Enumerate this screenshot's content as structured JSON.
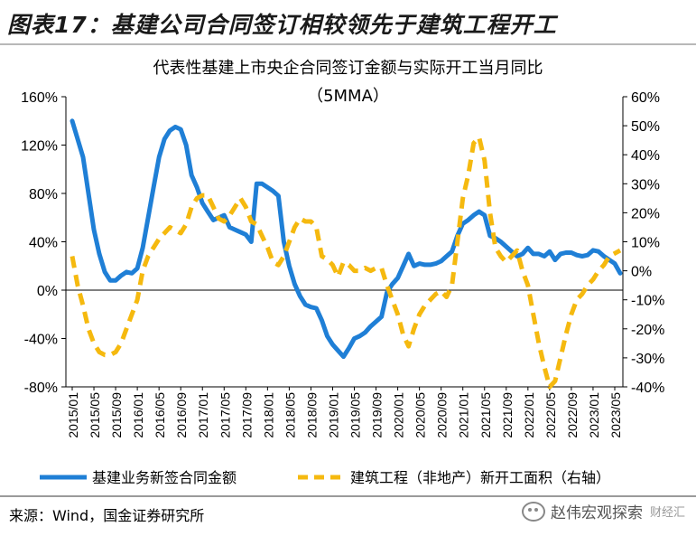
{
  "figure_title": "图表17：基建公司合同签订相较领先于建筑工程开工",
  "source": "来源：Wind，国金证券研究所",
  "watermark": {
    "name": "赵伟宏观探索",
    "sub": "财经汇"
  },
  "colors": {
    "blue": "#1f7fd6",
    "gold": "#f5b90f"
  },
  "chart_data": {
    "type": "line",
    "title": "代表性基建上市央企合同签订金额与实际开工当月同比",
    "subtitle": "（5MMA）",
    "left_axis": {
      "min": -80,
      "max": 160,
      "ticks": [
        "160%",
        "120%",
        "80%",
        "40%",
        "0%",
        "-40%",
        "-80%"
      ]
    },
    "right_axis": {
      "min": -40,
      "max": 60,
      "ticks": [
        "60%",
        "50%",
        "40%",
        "30%",
        "20%",
        "10%",
        "0%",
        "-10%",
        "-20%",
        "-30%",
        "-40%"
      ]
    },
    "x_tick_labels": [
      "2015/01",
      "2015/05",
      "2015/09",
      "2016/01",
      "2016/05",
      "2016/09",
      "2017/01",
      "2017/05",
      "2017/09",
      "2018/01",
      "2018/05",
      "2018/09",
      "2019/01",
      "2019/05",
      "2019/09",
      "2020/01",
      "2020/05",
      "2020/09",
      "2021/01",
      "2021/05",
      "2021/09",
      "2022/01",
      "2022/05",
      "2022/09",
      "2023/01",
      "2023/05"
    ],
    "series": [
      {
        "name": "基建业务新签合同金额",
        "axis": "left",
        "style": "solid",
        "color": "#1f7fd6",
        "points": [
          [
            "2015/01",
            140
          ],
          [
            "2015/02",
            125
          ],
          [
            "2015/03",
            110
          ],
          [
            "2015/04",
            80
          ],
          [
            "2015/05",
            50
          ],
          [
            "2015/06",
            30
          ],
          [
            "2015/07",
            15
          ],
          [
            "2015/08",
            8
          ],
          [
            "2015/09",
            8
          ],
          [
            "2015/10",
            12
          ],
          [
            "2015/11",
            15
          ],
          [
            "2015/12",
            14
          ],
          [
            "2016/01",
            18
          ],
          [
            "2016/02",
            35
          ],
          [
            "2016/03",
            60
          ],
          [
            "2016/04",
            85
          ],
          [
            "2016/05",
            110
          ],
          [
            "2016/06",
            125
          ],
          [
            "2016/07",
            132
          ],
          [
            "2016/08",
            135
          ],
          [
            "2016/09",
            133
          ],
          [
            "2016/10",
            120
          ],
          [
            "2016/11",
            95
          ],
          [
            "2016/12",
            85
          ],
          [
            "2017/01",
            72
          ],
          [
            "2017/02",
            65
          ],
          [
            "2017/03",
            58
          ],
          [
            "2017/04",
            60
          ],
          [
            "2017/05",
            62
          ],
          [
            "2017/06",
            52
          ],
          [
            "2017/07",
            50
          ],
          [
            "2017/08",
            48
          ],
          [
            "2017/09",
            46
          ],
          [
            "2017/10",
            40
          ],
          [
            "2017/11",
            88
          ],
          [
            "2017/12",
            88
          ],
          [
            "2018/01",
            85
          ],
          [
            "2018/02",
            82
          ],
          [
            "2018/03",
            78
          ],
          [
            "2018/04",
            40
          ],
          [
            "2018/05",
            20
          ],
          [
            "2018/06",
            5
          ],
          [
            "2018/07",
            -5
          ],
          [
            "2018/08",
            -12
          ],
          [
            "2018/09",
            -14
          ],
          [
            "2018/10",
            -15
          ],
          [
            "2018/11",
            -25
          ],
          [
            "2018/12",
            -38
          ],
          [
            "2019/01",
            -45
          ],
          [
            "2019/02",
            -50
          ],
          [
            "2019/03",
            -55
          ],
          [
            "2019/04",
            -48
          ],
          [
            "2019/05",
            -40
          ],
          [
            "2019/06",
            -38
          ],
          [
            "2019/07",
            -35
          ],
          [
            "2019/08",
            -30
          ],
          [
            "2019/09",
            -26
          ],
          [
            "2019/10",
            -22
          ],
          [
            "2019/11",
            -2
          ],
          [
            "2019/12",
            5
          ],
          [
            "2020/01",
            10
          ],
          [
            "2020/02",
            20
          ],
          [
            "2020/03",
            30
          ],
          [
            "2020/04",
            20
          ],
          [
            "2020/05",
            22
          ],
          [
            "2020/06",
            21
          ],
          [
            "2020/07",
            21
          ],
          [
            "2020/08",
            22
          ],
          [
            "2020/09",
            24
          ],
          [
            "2020/10",
            28
          ],
          [
            "2020/11",
            32
          ],
          [
            "2020/12",
            45
          ],
          [
            "2021/01",
            55
          ],
          [
            "2021/02",
            58
          ],
          [
            "2021/03",
            62
          ],
          [
            "2021/04",
            65
          ],
          [
            "2021/05",
            62
          ],
          [
            "2021/06",
            45
          ],
          [
            "2021/07",
            43
          ],
          [
            "2021/08",
            40
          ],
          [
            "2021/09",
            36
          ],
          [
            "2021/10",
            32
          ],
          [
            "2021/11",
            28
          ],
          [
            "2021/12",
            30
          ],
          [
            "2022/01",
            35
          ],
          [
            "2022/02",
            30
          ],
          [
            "2022/03",
            30
          ],
          [
            "2022/04",
            28
          ],
          [
            "2022/05",
            32
          ],
          [
            "2022/06",
            25
          ],
          [
            "2022/07",
            30
          ],
          [
            "2022/08",
            31
          ],
          [
            "2022/09",
            31
          ],
          [
            "2022/10",
            29
          ],
          [
            "2022/11",
            28
          ],
          [
            "2022/12",
            29
          ],
          [
            "2023/01",
            33
          ],
          [
            "2023/02",
            32
          ],
          [
            "2023/03",
            28
          ],
          [
            "2023/04",
            25
          ],
          [
            "2023/05",
            22
          ],
          [
            "2023/06",
            14
          ]
        ]
      },
      {
        "name": "建筑工程（非地产）新开工面积（右轴）",
        "axis": "right",
        "style": "dashed",
        "color": "#f5b90f",
        "points": [
          [
            "2015/01",
            5
          ],
          [
            "2015/02",
            -5
          ],
          [
            "2015/03",
            -12
          ],
          [
            "2015/04",
            -20
          ],
          [
            "2015/05",
            -25
          ],
          [
            "2015/06",
            -28
          ],
          [
            "2015/07",
            -29
          ],
          [
            "2015/08",
            -29
          ],
          [
            "2015/09",
            -28
          ],
          [
            "2015/10",
            -25
          ],
          [
            "2015/11",
            -20
          ],
          [
            "2015/12",
            -15
          ],
          [
            "2016/01",
            -10
          ],
          [
            "2016/02",
            0
          ],
          [
            "2016/03",
            5
          ],
          [
            "2016/04",
            8
          ],
          [
            "2016/05",
            11
          ],
          [
            "2016/06",
            13
          ],
          [
            "2016/07",
            15
          ],
          [
            "2016/08",
            14
          ],
          [
            "2016/09",
            13
          ],
          [
            "2016/10",
            16
          ],
          [
            "2016/11",
            22
          ],
          [
            "2016/12",
            25
          ],
          [
            "2017/01",
            26
          ],
          [
            "2017/02",
            26
          ],
          [
            "2017/03",
            22
          ],
          [
            "2017/04",
            18
          ],
          [
            "2017/05",
            17
          ],
          [
            "2017/06",
            19
          ],
          [
            "2017/07",
            22
          ],
          [
            "2017/08",
            25
          ],
          [
            "2017/09",
            22
          ],
          [
            "2017/10",
            17
          ],
          [
            "2017/11",
            16
          ],
          [
            "2017/12",
            12
          ],
          [
            "2018/01",
            8
          ],
          [
            "2018/02",
            3
          ],
          [
            "2018/03",
            2
          ],
          [
            "2018/04",
            5
          ],
          [
            "2018/05",
            10
          ],
          [
            "2018/06",
            15
          ],
          [
            "2018/07",
            18
          ],
          [
            "2018/08",
            17
          ],
          [
            "2018/09",
            17
          ],
          [
            "2018/10",
            15
          ],
          [
            "2018/11",
            5
          ],
          [
            "2018/12",
            4
          ],
          [
            "2019/01",
            2
          ],
          [
            "2019/02",
            -2
          ],
          [
            "2019/03",
            3
          ],
          [
            "2019/04",
            2
          ],
          [
            "2019/05",
            0
          ],
          [
            "2019/06",
            0
          ],
          [
            "2019/07",
            1
          ],
          [
            "2019/08",
            0
          ],
          [
            "2019/09",
            1
          ],
          [
            "2019/10",
            1
          ],
          [
            "2019/11",
            -5
          ],
          [
            "2019/12",
            -10
          ],
          [
            "2020/01",
            -15
          ],
          [
            "2020/02",
            -22
          ],
          [
            "2020/03",
            -26
          ],
          [
            "2020/04",
            -20
          ],
          [
            "2020/05",
            -15
          ],
          [
            "2020/06",
            -12
          ],
          [
            "2020/07",
            -10
          ],
          [
            "2020/08",
            -8
          ],
          [
            "2020/09",
            -7
          ],
          [
            "2020/10",
            -9
          ],
          [
            "2020/11",
            -5
          ],
          [
            "2020/12",
            10
          ],
          [
            "2021/01",
            25
          ],
          [
            "2021/02",
            33
          ],
          [
            "2021/03",
            44
          ],
          [
            "2021/04",
            46
          ],
          [
            "2021/05",
            38
          ],
          [
            "2021/06",
            20
          ],
          [
            "2021/07",
            8
          ],
          [
            "2021/08",
            5
          ],
          [
            "2021/09",
            3
          ],
          [
            "2021/10",
            5
          ],
          [
            "2021/11",
            7
          ],
          [
            "2021/12",
            0
          ],
          [
            "2022/01",
            -5
          ],
          [
            "2022/02",
            -15
          ],
          [
            "2022/03",
            -25
          ],
          [
            "2022/04",
            -33
          ],
          [
            "2022/05",
            -40
          ],
          [
            "2022/06",
            -38
          ],
          [
            "2022/07",
            -30
          ],
          [
            "2022/08",
            -22
          ],
          [
            "2022/09",
            -15
          ],
          [
            "2022/10",
            -10
          ],
          [
            "2022/11",
            -8
          ],
          [
            "2022/12",
            -5
          ],
          [
            "2023/01",
            -3
          ],
          [
            "2023/02",
            0
          ],
          [
            "2023/03",
            2
          ],
          [
            "2023/04",
            5
          ],
          [
            "2023/05",
            6
          ],
          [
            "2023/06",
            7
          ]
        ]
      }
    ],
    "legend_placement": "bottom"
  }
}
